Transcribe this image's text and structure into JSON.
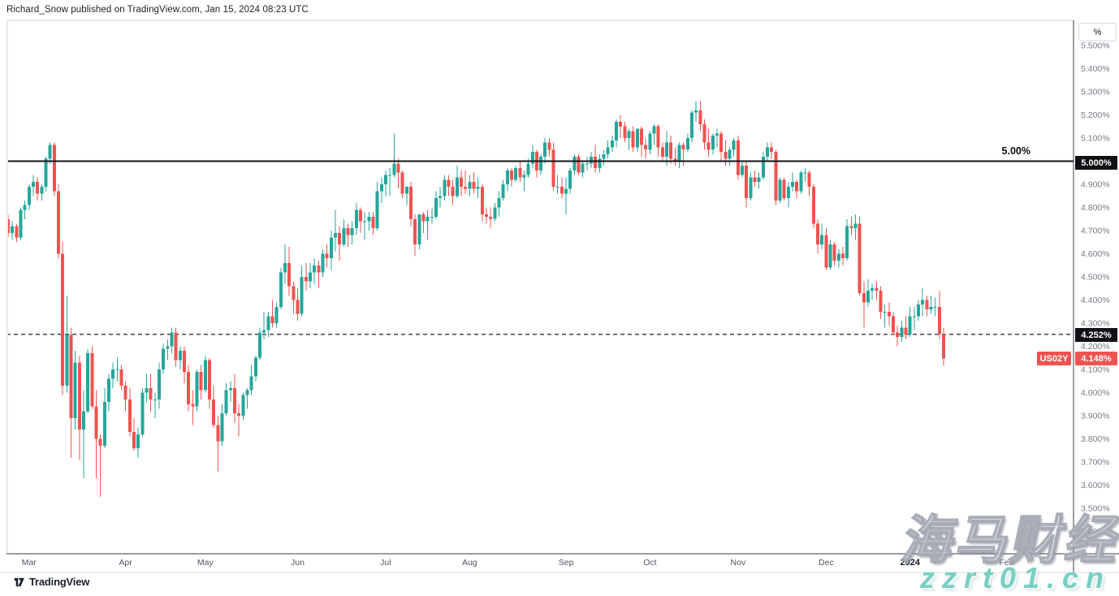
{
  "header": {
    "attribution": "Richard_Snow published on TradingView.com, Jan 15, 2024 08:23 UTC"
  },
  "symbol": {
    "name": "US02Y",
    "last_label": "4.148%",
    "prev_close_label": "4.252%"
  },
  "levels": {
    "hline_label": "5.00%",
    "hline_axis_label": "5.000%"
  },
  "price_axis": {
    "unit_button": "%",
    "ticks": [
      "5.500%",
      "5.400%",
      "5.300%",
      "5.200%",
      "5.100%",
      "5.000%",
      "4.900%",
      "4.800%",
      "4.700%",
      "4.600%",
      "4.500%",
      "4.400%",
      "4.300%",
      "4.200%",
      "4.100%",
      "4.000%",
      "3.900%",
      "3.800%",
      "3.700%",
      "3.600%",
      "3.500%",
      "3.400%"
    ],
    "tick_values": [
      5.5,
      5.4,
      5.3,
      5.2,
      5.1,
      5.0,
      4.9,
      4.8,
      4.7,
      4.6,
      4.5,
      4.4,
      4.3,
      4.2,
      4.1,
      4.0,
      3.9,
      3.8,
      3.7,
      3.6,
      3.5,
      3.4
    ]
  },
  "time_axis": {
    "labels": [
      {
        "label": "Mar",
        "i": 5
      },
      {
        "label": "Apr",
        "i": 28
      },
      {
        "label": "May",
        "i": 47
      },
      {
        "label": "Jun",
        "i": 69
      },
      {
        "label": "Jul",
        "i": 90
      },
      {
        "label": "Aug",
        "i": 110
      },
      {
        "label": "Sep",
        "i": 133
      },
      {
        "label": "Oct",
        "i": 153
      },
      {
        "label": "Nov",
        "i": 174
      },
      {
        "label": "Dec",
        "i": 195
      },
      {
        "label": "2024",
        "i": 215,
        "year": true
      },
      {
        "label": "Feb",
        "i": 238
      }
    ]
  },
  "watermark": {
    "cjk": "海马财经",
    "latin": "zzrt01.cn"
  },
  "footer": {
    "brand": "TradingView"
  },
  "colors": {
    "up": "#26A69A",
    "down": "#EF5350",
    "axis_text": "#787B86",
    "month_text": "#51545f",
    "year_text": "#131722"
  },
  "chart_data": {
    "type": "candlestick",
    "symbol": "US02Y",
    "unit": "%",
    "timeframe": "1D",
    "x_range": [
      "Feb 2023",
      "Feb 2024"
    ],
    "ylim": [
      3.35,
      5.55
    ],
    "y_tick_step": 0.1,
    "grid": false,
    "last_price": 4.148,
    "horizontal_lines": [
      {
        "value": 5.0,
        "style": "solid",
        "label": "5.00%"
      },
      {
        "value": 4.252,
        "style": "dashed",
        "label": "4.252%"
      }
    ],
    "candles": [
      [
        4.75,
        4.77,
        4.67,
        4.69
      ],
      [
        4.69,
        4.74,
        4.66,
        4.72
      ],
      [
        4.72,
        4.73,
        4.65,
        4.67
      ],
      [
        4.67,
        4.8,
        4.66,
        4.79
      ],
      [
        4.79,
        4.83,
        4.75,
        4.81
      ],
      [
        4.81,
        4.9,
        4.79,
        4.89
      ],
      [
        4.89,
        4.94,
        4.85,
        4.91
      ],
      [
        4.91,
        4.93,
        4.83,
        4.86
      ],
      [
        4.86,
        4.9,
        4.83,
        4.89
      ],
      [
        4.89,
        5.02,
        4.87,
        5.01
      ],
      [
        5.01,
        5.08,
        4.99,
        5.07
      ],
      [
        5.07,
        5.08,
        4.85,
        4.87
      ],
      [
        4.87,
        4.9,
        4.58,
        4.6
      ],
      [
        4.6,
        4.65,
        3.99,
        4.03
      ],
      [
        4.03,
        4.42,
        4.0,
        4.25
      ],
      [
        4.25,
        4.28,
        3.72,
        3.89
      ],
      [
        3.89,
        4.18,
        3.84,
        4.13
      ],
      [
        4.13,
        4.16,
        3.71,
        3.84
      ],
      [
        3.84,
        4.01,
        3.63,
        3.92
      ],
      [
        3.92,
        4.19,
        3.91,
        4.17
      ],
      [
        4.17,
        4.2,
        3.93,
        3.94
      ],
      [
        3.94,
        4.01,
        3.63,
        3.8
      ],
      [
        3.8,
        3.82,
        3.55,
        3.77
      ],
      [
        3.77,
        4.02,
        3.76,
        3.96
      ],
      [
        3.96,
        4.08,
        3.92,
        4.06
      ],
      [
        4.06,
        4.13,
        4.02,
        4.1
      ],
      [
        4.1,
        4.15,
        4.05,
        4.1
      ],
      [
        4.1,
        4.12,
        4.01,
        4.03
      ],
      [
        4.03,
        4.05,
        3.92,
        3.97
      ],
      [
        3.97,
        4.02,
        3.81,
        3.83
      ],
      [
        3.83,
        3.89,
        3.75,
        3.76
      ],
      [
        3.76,
        3.85,
        3.72,
        3.82
      ],
      [
        3.82,
        4.02,
        3.81,
        4.0
      ],
      [
        4.0,
        4.08,
        3.96,
        4.02
      ],
      [
        4.02,
        4.08,
        3.92,
        3.97
      ],
      [
        3.97,
        4.0,
        3.89,
        3.97
      ],
      [
        3.97,
        4.13,
        3.93,
        4.1
      ],
      [
        4.1,
        4.21,
        4.08,
        4.19
      ],
      [
        4.19,
        4.23,
        4.14,
        4.2
      ],
      [
        4.2,
        4.28,
        4.17,
        4.26
      ],
      [
        4.26,
        4.28,
        4.11,
        4.14
      ],
      [
        4.14,
        4.2,
        4.1,
        4.18
      ],
      [
        4.18,
        4.2,
        4.04,
        4.09
      ],
      [
        4.09,
        4.12,
        3.92,
        3.95
      ],
      [
        3.95,
        4.01,
        3.86,
        3.94
      ],
      [
        3.94,
        4.1,
        3.92,
        4.09
      ],
      [
        4.09,
        4.12,
        3.97,
        4.01
      ],
      [
        4.01,
        4.16,
        4.0,
        4.14
      ],
      [
        4.14,
        4.15,
        3.93,
        3.97
      ],
      [
        3.97,
        4.03,
        3.85,
        3.86
      ],
      [
        3.86,
        3.9,
        3.66,
        3.79
      ],
      [
        3.79,
        3.95,
        3.77,
        3.91
      ],
      [
        3.91,
        4.04,
        3.9,
        4.01
      ],
      [
        4.01,
        4.05,
        3.96,
        4.02
      ],
      [
        4.02,
        4.08,
        3.87,
        3.91
      ],
      [
        3.91,
        3.95,
        3.81,
        3.9
      ],
      [
        3.9,
        4.0,
        3.88,
        3.99
      ],
      [
        3.99,
        4.02,
        3.93,
        4.01
      ],
      [
        4.01,
        4.12,
        3.99,
        4.07
      ],
      [
        4.07,
        4.16,
        4.05,
        4.15
      ],
      [
        4.15,
        4.28,
        4.14,
        4.26
      ],
      [
        4.26,
        4.35,
        4.23,
        4.27
      ],
      [
        4.27,
        4.35,
        4.24,
        4.33
      ],
      [
        4.33,
        4.4,
        4.28,
        4.3
      ],
      [
        4.3,
        4.39,
        4.28,
        4.37
      ],
      [
        4.37,
        4.54,
        4.36,
        4.52
      ],
      [
        4.52,
        4.64,
        4.47,
        4.56
      ],
      [
        4.56,
        4.63,
        4.42,
        4.46
      ],
      [
        4.46,
        4.48,
        4.34,
        4.4
      ],
      [
        4.4,
        4.45,
        4.31,
        4.34
      ],
      [
        4.34,
        4.55,
        4.33,
        4.5
      ],
      [
        4.5,
        4.56,
        4.44,
        4.48
      ],
      [
        4.48,
        4.56,
        4.45,
        4.52
      ],
      [
        4.52,
        4.58,
        4.47,
        4.55
      ],
      [
        4.55,
        4.57,
        4.45,
        4.52
      ],
      [
        4.52,
        4.62,
        4.5,
        4.6
      ],
      [
        4.6,
        4.64,
        4.54,
        4.58
      ],
      [
        4.58,
        4.7,
        4.53,
        4.67
      ],
      [
        4.67,
        4.79,
        4.61,
        4.69
      ],
      [
        4.69,
        4.72,
        4.57,
        4.64
      ],
      [
        4.64,
        4.75,
        4.63,
        4.71
      ],
      [
        4.71,
        4.73,
        4.63,
        4.68
      ],
      [
        4.68,
        4.74,
        4.64,
        4.71
      ],
      [
        4.71,
        4.82,
        4.68,
        4.79
      ],
      [
        4.79,
        4.8,
        4.69,
        4.74
      ],
      [
        4.74,
        4.78,
        4.66,
        4.74
      ],
      [
        4.74,
        4.78,
        4.7,
        4.76
      ],
      [
        4.76,
        4.78,
        4.68,
        4.71
      ],
      [
        4.71,
        4.91,
        4.7,
        4.87
      ],
      [
        4.87,
        4.93,
        4.82,
        4.9
      ],
      [
        4.9,
        4.96,
        4.85,
        4.94
      ],
      [
        4.94,
        4.97,
        4.85,
        4.94
      ],
      [
        4.94,
        5.12,
        4.93,
        4.99
      ],
      [
        4.99,
        5.01,
        4.88,
        4.95
      ],
      [
        4.95,
        4.96,
        4.84,
        4.86
      ],
      [
        4.86,
        4.89,
        4.81,
        4.89
      ],
      [
        4.89,
        4.91,
        4.72,
        4.75
      ],
      [
        4.75,
        4.77,
        4.59,
        4.64
      ],
      [
        4.64,
        4.77,
        4.62,
        4.77
      ],
      [
        4.77,
        4.78,
        4.69,
        4.74
      ],
      [
        4.74,
        4.79,
        4.66,
        4.76
      ],
      [
        4.76,
        4.8,
        4.73,
        4.76
      ],
      [
        4.76,
        4.87,
        4.75,
        4.84
      ],
      [
        4.84,
        4.89,
        4.8,
        4.85
      ],
      [
        4.85,
        4.94,
        4.83,
        4.92
      ],
      [
        4.92,
        4.94,
        4.85,
        4.89
      ],
      [
        4.89,
        4.92,
        4.81,
        4.85
      ],
      [
        4.85,
        4.98,
        4.84,
        4.93
      ],
      [
        4.93,
        4.96,
        4.85,
        4.89
      ],
      [
        4.89,
        4.96,
        4.86,
        4.88
      ],
      [
        4.88,
        4.94,
        4.85,
        4.91
      ],
      [
        4.91,
        4.95,
        4.86,
        4.88
      ],
      [
        4.88,
        4.93,
        4.84,
        4.89
      ],
      [
        4.89,
        4.9,
        4.74,
        4.77
      ],
      [
        4.77,
        4.8,
        4.73,
        4.76
      ],
      [
        4.76,
        4.8,
        4.71,
        4.75
      ],
      [
        4.75,
        4.82,
        4.74,
        4.8
      ],
      [
        4.8,
        4.87,
        4.76,
        4.84
      ],
      [
        4.84,
        4.92,
        4.83,
        4.9
      ],
      [
        4.9,
        4.97,
        4.87,
        4.96
      ],
      [
        4.96,
        4.97,
        4.89,
        4.92
      ],
      [
        4.92,
        4.98,
        4.91,
        4.97
      ],
      [
        4.97,
        5.0,
        4.91,
        4.93
      ],
      [
        4.93,
        4.96,
        4.87,
        4.94
      ],
      [
        4.94,
        5.01,
        4.93,
        4.99
      ],
      [
        4.99,
        5.07,
        4.97,
        5.04
      ],
      [
        5.04,
        5.05,
        4.93,
        4.96
      ],
      [
        4.96,
        5.03,
        4.94,
        5.02
      ],
      [
        5.02,
        5.1,
        4.99,
        5.08
      ],
      [
        5.08,
        5.1,
        5.02,
        5.05
      ],
      [
        5.05,
        5.08,
        4.87,
        4.89
      ],
      [
        4.89,
        4.94,
        4.86,
        4.89
      ],
      [
        4.89,
        4.93,
        4.84,
        4.86
      ],
      [
        4.86,
        4.93,
        4.77,
        4.88
      ],
      [
        4.88,
        4.97,
        4.86,
        4.96
      ],
      [
        4.96,
        5.03,
        4.94,
        5.02
      ],
      [
        5.02,
        5.03,
        4.94,
        4.95
      ],
      [
        4.95,
        5.0,
        4.93,
        4.99
      ],
      [
        4.99,
        5.02,
        4.96,
        4.99
      ],
      [
        4.99,
        5.04,
        4.97,
        5.02
      ],
      [
        5.02,
        5.07,
        4.95,
        4.97
      ],
      [
        4.97,
        5.03,
        4.95,
        5.01
      ],
      [
        5.01,
        5.05,
        4.98,
        5.03
      ],
      [
        5.03,
        5.09,
        5.01,
        5.06
      ],
      [
        5.06,
        5.11,
        5.04,
        5.09
      ],
      [
        5.09,
        5.18,
        5.06,
        5.17
      ],
      [
        5.17,
        5.2,
        5.1,
        5.15
      ],
      [
        5.15,
        5.17,
        5.08,
        5.1
      ],
      [
        5.1,
        5.14,
        5.05,
        5.13
      ],
      [
        5.13,
        5.15,
        5.04,
        5.06
      ],
      [
        5.06,
        5.14,
        5.04,
        5.14
      ],
      [
        5.14,
        5.15,
        5.02,
        5.07
      ],
      [
        5.07,
        5.1,
        5.01,
        5.05
      ],
      [
        5.05,
        5.13,
        5.03,
        5.12
      ],
      [
        5.12,
        5.16,
        5.07,
        5.15
      ],
      [
        5.15,
        5.16,
        5.02,
        5.06
      ],
      [
        5.06,
        5.08,
        5.0,
        5.02
      ],
      [
        5.02,
        5.13,
        4.98,
        5.08
      ],
      [
        5.08,
        5.11,
        4.99,
        5.01
      ],
      [
        5.01,
        5.06,
        4.98,
        5.0
      ],
      [
        5.0,
        5.08,
        4.97,
        5.07
      ],
      [
        5.07,
        5.08,
        4.98,
        5.05
      ],
      [
        5.05,
        5.12,
        5.04,
        5.1
      ],
      [
        5.1,
        5.22,
        5.08,
        5.21
      ],
      [
        5.21,
        5.26,
        5.17,
        5.22
      ],
      [
        5.22,
        5.26,
        5.13,
        5.16
      ],
      [
        5.16,
        5.18,
        5.05,
        5.08
      ],
      [
        5.08,
        5.14,
        5.02,
        5.05
      ],
      [
        5.05,
        5.12,
        5.03,
        5.11
      ],
      [
        5.11,
        5.14,
        5.06,
        5.12
      ],
      [
        5.12,
        5.13,
        5.0,
        5.04
      ],
      [
        5.04,
        5.09,
        4.98,
        5.01
      ],
      [
        5.01,
        5.06,
        4.98,
        5.05
      ],
      [
        5.05,
        5.1,
        5.02,
        5.09
      ],
      [
        5.09,
        5.11,
        4.92,
        4.94
      ],
      [
        4.94,
        5.0,
        4.93,
        4.98
      ],
      [
        4.98,
        5.0,
        4.8,
        4.84
      ],
      [
        4.84,
        4.95,
        4.83,
        4.93
      ],
      [
        4.93,
        4.96,
        4.89,
        4.91
      ],
      [
        4.91,
        4.95,
        4.88,
        4.93
      ],
      [
        4.93,
        5.04,
        4.92,
        5.02
      ],
      [
        5.02,
        5.08,
        5.0,
        5.06
      ],
      [
        5.06,
        5.08,
        5.01,
        5.04
      ],
      [
        5.04,
        5.05,
        4.81,
        4.83
      ],
      [
        4.83,
        4.93,
        4.82,
        4.92
      ],
      [
        4.92,
        4.93,
        4.83,
        4.84
      ],
      [
        4.84,
        4.91,
        4.8,
        4.89
      ],
      [
        4.89,
        4.95,
        4.87,
        4.91
      ],
      [
        4.91,
        4.92,
        4.84,
        4.87
      ],
      [
        4.87,
        4.96,
        4.86,
        4.95
      ],
      [
        4.95,
        4.97,
        4.91,
        4.95
      ],
      [
        4.95,
        4.96,
        4.85,
        4.89
      ],
      [
        4.89,
        4.9,
        4.71,
        4.73
      ],
      [
        4.73,
        4.75,
        4.6,
        4.64
      ],
      [
        4.64,
        4.73,
        4.62,
        4.68
      ],
      [
        4.68,
        4.71,
        4.53,
        4.54
      ],
      [
        4.54,
        4.66,
        4.53,
        4.64
      ],
      [
        4.64,
        4.65,
        4.55,
        4.57
      ],
      [
        4.57,
        4.62,
        4.54,
        4.6
      ],
      [
        4.6,
        4.63,
        4.55,
        4.58
      ],
      [
        4.58,
        4.75,
        4.57,
        4.72
      ],
      [
        4.72,
        4.76,
        4.68,
        4.71
      ],
      [
        4.71,
        4.77,
        4.66,
        4.73
      ],
      [
        4.73,
        4.76,
        4.42,
        4.43
      ],
      [
        4.43,
        4.48,
        4.28,
        4.39
      ],
      [
        4.39,
        4.49,
        4.37,
        4.44
      ],
      [
        4.44,
        4.47,
        4.4,
        4.45
      ],
      [
        4.45,
        4.48,
        4.4,
        4.44
      ],
      [
        4.44,
        4.46,
        4.32,
        4.35
      ],
      [
        4.35,
        4.38,
        4.28,
        4.35
      ],
      [
        4.35,
        4.39,
        4.29,
        4.33
      ],
      [
        4.33,
        4.35,
        4.25,
        4.26
      ],
      [
        4.26,
        4.29,
        4.2,
        4.24
      ],
      [
        4.24,
        4.31,
        4.22,
        4.28
      ],
      [
        4.28,
        4.33,
        4.23,
        4.25
      ],
      [
        4.25,
        4.37,
        4.24,
        4.33
      ],
      [
        4.33,
        4.37,
        4.27,
        4.33
      ],
      [
        4.33,
        4.4,
        4.31,
        4.38
      ],
      [
        4.38,
        4.45,
        4.33,
        4.4
      ],
      [
        4.4,
        4.42,
        4.33,
        4.36
      ],
      [
        4.36,
        4.42,
        4.34,
        4.37
      ],
      [
        4.37,
        4.41,
        4.33,
        4.37
      ],
      [
        4.37,
        4.44,
        4.23,
        4.252
      ],
      [
        4.252,
        4.28,
        4.115,
        4.148
      ]
    ]
  }
}
